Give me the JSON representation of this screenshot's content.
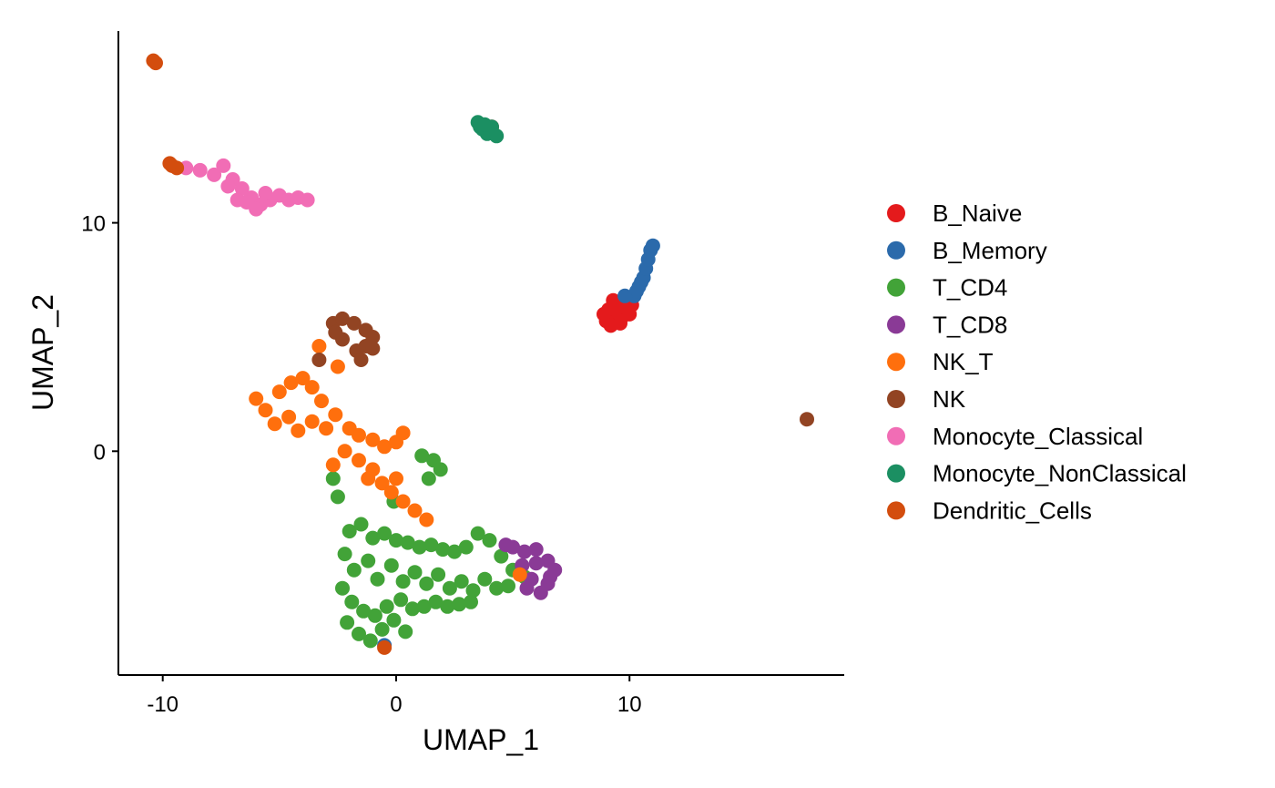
{
  "chart_data": {
    "type": "scatter",
    "xlabel": "UMAP_1",
    "ylabel": "UMAP_2",
    "xlim": [
      -11.9,
      19.2
    ],
    "ylim": [
      -9.8,
      18.4
    ],
    "x_ticks": [
      -10,
      0,
      10
    ],
    "y_ticks": [
      0,
      10
    ],
    "x_tick_labels": [
      "-10",
      "0",
      "10"
    ],
    "y_tick_labels": [
      "0",
      "10"
    ],
    "legend_position": "right",
    "grid": false,
    "series": [
      {
        "name": "B_Naive",
        "color": "#E41A1C",
        "points": [
          [
            9.1,
            6.2
          ],
          [
            9.3,
            5.8
          ],
          [
            9.5,
            6.1
          ],
          [
            9.7,
            5.9
          ],
          [
            9.0,
            5.7
          ],
          [
            9.4,
            6.4
          ],
          [
            9.8,
            6.3
          ],
          [
            10.0,
            6.0
          ],
          [
            9.2,
            5.5
          ],
          [
            9.6,
            5.6
          ],
          [
            8.9,
            6.0
          ],
          [
            10.1,
            6.4
          ],
          [
            9.3,
            6.6
          ],
          [
            4.1,
            14.2
          ]
        ]
      },
      {
        "name": "B_Memory",
        "color": "#2B6AAB",
        "points": [
          [
            10.2,
            6.8
          ],
          [
            10.4,
            7.2
          ],
          [
            10.6,
            7.6
          ],
          [
            10.7,
            8.0
          ],
          [
            10.8,
            8.4
          ],
          [
            10.9,
            8.8
          ],
          [
            11.0,
            9.0
          ],
          [
            10.5,
            7.4
          ],
          [
            10.3,
            7.0
          ],
          [
            9.8,
            6.8
          ],
          [
            -0.5,
            -8.5
          ]
        ]
      },
      {
        "name": "T_CD4",
        "color": "#42A338",
        "points": [
          [
            -2.0,
            -3.5
          ],
          [
            -1.5,
            -3.2
          ],
          [
            -1.0,
            -3.8
          ],
          [
            -0.5,
            -3.6
          ],
          [
            0.0,
            -3.9
          ],
          [
            0.5,
            -4.0
          ],
          [
            1.0,
            -4.2
          ],
          [
            1.5,
            -4.1
          ],
          [
            2.0,
            -4.3
          ],
          [
            2.5,
            -4.4
          ],
          [
            3.0,
            -4.2
          ],
          [
            3.5,
            -3.6
          ],
          [
            4.0,
            -3.9
          ],
          [
            4.5,
            -4.6
          ],
          [
            5.0,
            -5.2
          ],
          [
            5.5,
            -5.5
          ],
          [
            -2.2,
            -4.5
          ],
          [
            -1.8,
            -5.2
          ],
          [
            -1.2,
            -4.8
          ],
          [
            -0.8,
            -5.6
          ],
          [
            -0.2,
            -5.0
          ],
          [
            0.3,
            -5.7
          ],
          [
            0.8,
            -5.3
          ],
          [
            1.3,
            -5.8
          ],
          [
            1.8,
            -5.4
          ],
          [
            2.3,
            -6.0
          ],
          [
            2.8,
            -5.7
          ],
          [
            3.3,
            -6.1
          ],
          [
            3.8,
            -5.6
          ],
          [
            4.3,
            -6.0
          ],
          [
            4.8,
            -5.9
          ],
          [
            -2.3,
            -6.0
          ],
          [
            -1.9,
            -6.6
          ],
          [
            -1.4,
            -7.0
          ],
          [
            -0.9,
            -7.2
          ],
          [
            -0.4,
            -6.8
          ],
          [
            0.2,
            -6.5
          ],
          [
            0.7,
            -6.9
          ],
          [
            1.2,
            -6.8
          ],
          [
            1.7,
            -6.6
          ],
          [
            2.2,
            -6.8
          ],
          [
            2.7,
            -6.7
          ],
          [
            3.2,
            -6.6
          ],
          [
            -2.1,
            -7.5
          ],
          [
            -1.6,
            -8.0
          ],
          [
            -1.1,
            -8.3
          ],
          [
            -0.6,
            -7.8
          ],
          [
            -0.1,
            -7.4
          ],
          [
            0.4,
            -7.9
          ],
          [
            1.1,
            -0.2
          ],
          [
            1.6,
            -0.4
          ],
          [
            1.9,
            -0.8
          ],
          [
            1.4,
            -1.2
          ],
          [
            -2.7,
            -1.2
          ],
          [
            -2.5,
            -2.0
          ],
          [
            -0.1,
            -2.2
          ]
        ]
      },
      {
        "name": "T_CD8",
        "color": "#8A3A96",
        "points": [
          [
            5.0,
            -4.2
          ],
          [
            5.5,
            -4.4
          ],
          [
            6.0,
            -4.3
          ],
          [
            6.5,
            -4.8
          ],
          [
            6.8,
            -5.2
          ],
          [
            6.5,
            -5.8
          ],
          [
            6.2,
            -6.2
          ],
          [
            5.8,
            -5.6
          ],
          [
            5.4,
            -5.0
          ],
          [
            6.0,
            -4.9
          ],
          [
            6.6,
            -5.5
          ],
          [
            5.6,
            -6.0
          ],
          [
            4.7,
            -4.1
          ]
        ]
      },
      {
        "name": "NK_T",
        "color": "#FF6F0D",
        "points": [
          [
            -6.0,
            2.3
          ],
          [
            -5.6,
            1.8
          ],
          [
            -5.0,
            2.6
          ],
          [
            -4.5,
            3.0
          ],
          [
            -4.0,
            3.2
          ],
          [
            -3.6,
            2.8
          ],
          [
            -3.2,
            2.2
          ],
          [
            -5.2,
            1.2
          ],
          [
            -4.6,
            1.5
          ],
          [
            -4.2,
            0.9
          ],
          [
            -3.6,
            1.3
          ],
          [
            -3.0,
            1.0
          ],
          [
            -2.6,
            1.6
          ],
          [
            -2.0,
            1.0
          ],
          [
            -1.6,
            0.7
          ],
          [
            -1.0,
            0.5
          ],
          [
            -0.5,
            0.2
          ],
          [
            0.0,
            0.4
          ],
          [
            0.3,
            0.8
          ],
          [
            -2.2,
            0.0
          ],
          [
            -1.6,
            -0.4
          ],
          [
            -1.0,
            -0.8
          ],
          [
            -0.6,
            -1.4
          ],
          [
            -0.2,
            -1.8
          ],
          [
            0.3,
            -2.2
          ],
          [
            0.8,
            -2.6
          ],
          [
            1.3,
            -3.0
          ],
          [
            -2.7,
            -0.6
          ],
          [
            -1.2,
            -1.2
          ],
          [
            0.0,
            -1.2
          ],
          [
            -3.3,
            4.6
          ],
          [
            -2.5,
            3.7
          ],
          [
            5.3,
            -5.4
          ]
        ]
      },
      {
        "name": "NK",
        "color": "#924423",
        "points": [
          [
            -2.7,
            5.6
          ],
          [
            -2.3,
            5.8
          ],
          [
            -1.8,
            5.6
          ],
          [
            -1.3,
            5.3
          ],
          [
            -1.0,
            5.0
          ],
          [
            -1.3,
            4.6
          ],
          [
            -1.7,
            4.4
          ],
          [
            -2.3,
            4.9
          ],
          [
            -2.6,
            5.2
          ],
          [
            -1.5,
            4.0
          ],
          [
            -1.0,
            4.5
          ],
          [
            -3.3,
            4.0
          ],
          [
            17.6,
            1.4
          ]
        ]
      },
      {
        "name": "Monocyte_Classical",
        "color": "#F16DB5",
        "points": [
          [
            -9.0,
            12.4
          ],
          [
            -8.4,
            12.3
          ],
          [
            -7.8,
            12.1
          ],
          [
            -7.4,
            12.5
          ],
          [
            -7.0,
            11.9
          ],
          [
            -6.6,
            11.5
          ],
          [
            -6.2,
            11.1
          ],
          [
            -5.8,
            10.8
          ],
          [
            -5.4,
            11.0
          ],
          [
            -5.0,
            11.2
          ],
          [
            -4.6,
            11.0
          ],
          [
            -4.2,
            11.1
          ],
          [
            -3.8,
            11.0
          ],
          [
            -6.8,
            11.0
          ],
          [
            -6.0,
            10.6
          ],
          [
            -7.2,
            11.6
          ],
          [
            -5.6,
            11.3
          ],
          [
            -6.4,
            10.9
          ]
        ]
      },
      {
        "name": "Monocyte_NonClassical",
        "color": "#1B8F62",
        "points": [
          [
            3.5,
            14.4
          ],
          [
            3.7,
            14.1
          ],
          [
            3.9,
            13.9
          ],
          [
            4.1,
            14.2
          ],
          [
            4.3,
            13.8
          ],
          [
            3.6,
            14.2
          ],
          [
            3.8,
            14.3
          ]
        ]
      },
      {
        "name": "Dendritic_Cells",
        "color": "#D34D0E",
        "points": [
          [
            -10.4,
            17.1
          ],
          [
            -10.3,
            17.0
          ],
          [
            -9.6,
            12.5
          ],
          [
            -9.4,
            12.4
          ],
          [
            -9.7,
            12.6
          ],
          [
            -0.5,
            -8.6
          ]
        ]
      }
    ]
  }
}
